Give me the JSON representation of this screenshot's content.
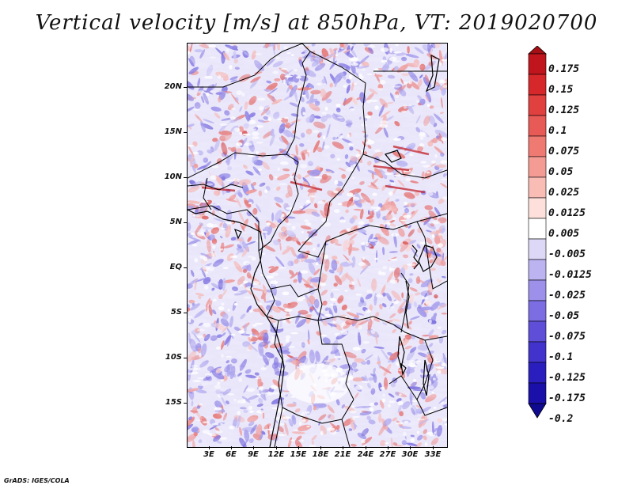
{
  "title": "Vertical velocity [m/s] at 850hPa, VT: 2019020700",
  "map": {
    "variable": "Vertical velocity",
    "units": "m/s",
    "level": "850hPa",
    "valid_time": "2019020700",
    "lat_labels": [
      "20N",
      "15N",
      "10N",
      "5N",
      "EQ",
      "5S",
      "10S",
      "15S"
    ],
    "lon_labels": [
      "3E",
      "6E",
      "9E",
      "12E",
      "15E",
      "18E",
      "21E",
      "24E",
      "27E",
      "30E",
      "33E"
    ]
  },
  "colorbar": {
    "labels": [
      "0.175",
      "0.15",
      "0.125",
      "0.1",
      "0.075",
      "0.05",
      "0.025",
      "0.0125",
      "0.005",
      "-0.005",
      "-0.0125",
      "-0.025",
      "-0.05",
      "-0.075",
      "-0.1",
      "-0.125",
      "-0.175",
      "-0.2"
    ],
    "colors": [
      "#a50f15",
      "#c0151d",
      "#d6282a",
      "#e0403e",
      "#e85a55",
      "#ef7a72",
      "#f49c94",
      "#f9bdb6",
      "#fde0dc",
      "#ffffff",
      "#dcd8f6",
      "#bcb4f0",
      "#9c90ea",
      "#7c6de2",
      "#5f4fd8",
      "#4233cc",
      "#2a1fbe",
      "#1a0fa8",
      "#0f0a90"
    ]
  },
  "credit": "GrADS: IGES/COLA"
}
